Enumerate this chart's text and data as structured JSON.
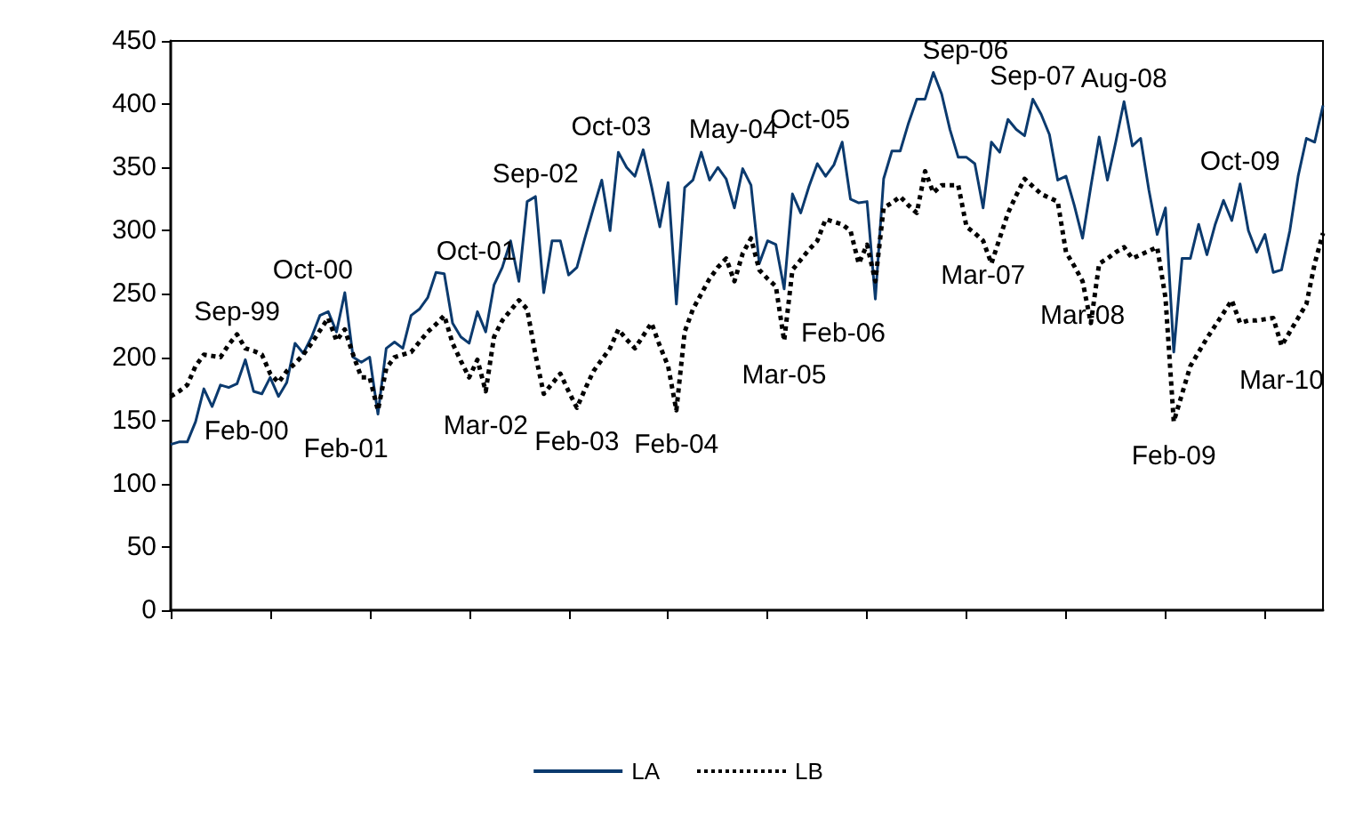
{
  "chart_data": {
    "type": "line",
    "categories": [
      null,
      null,
      null,
      null,
      null,
      null,
      null,
      null,
      null,
      null,
      null,
      null,
      null,
      null,
      null,
      null,
      null,
      null,
      null,
      null,
      null,
      null,
      null,
      null,
      null,
      null,
      null,
      null,
      null,
      null,
      null,
      null,
      null,
      null,
      null,
      null,
      null,
      null,
      null,
      null,
      null,
      null,
      null,
      null,
      null,
      null,
      null,
      null,
      null,
      null,
      null,
      null,
      null,
      null,
      null,
      null,
      null,
      null,
      null,
      null,
      null,
      null,
      null,
      null,
      null,
      null,
      null,
      null,
      null,
      null,
      null,
      null,
      null,
      null,
      null,
      null,
      null,
      null,
      null,
      null,
      null,
      null,
      null,
      null,
      null,
      null,
      null,
      null,
      null,
      null,
      null,
      null,
      null,
      null,
      null,
      null,
      null,
      null,
      null,
      null,
      null,
      null,
      null,
      null,
      null,
      null,
      null,
      null,
      null,
      null,
      null,
      null,
      null,
      null,
      null,
      null,
      null,
      null,
      null,
      null,
      null,
      null,
      null,
      null,
      null,
      null,
      null,
      null,
      null,
      null,
      null,
      null,
      null,
      null,
      null,
      null,
      null,
      null,
      null,
      null
    ],
    "series": [
      {
        "name": "LA",
        "color": "#0b3a6e",
        "line_style": "solid",
        "values": [
          131,
          133,
          133,
          149,
          175,
          161,
          178,
          176,
          179,
          198,
          173,
          171,
          184,
          169,
          180,
          211,
          203,
          216,
          233,
          236,
          220,
          251,
          200,
          196,
          200,
          155,
          207,
          212,
          207,
          233,
          238,
          247,
          267,
          266,
          227,
          216,
          211,
          236,
          220,
          257,
          271,
          292,
          260,
          323,
          327,
          251,
          292,
          292,
          265,
          271,
          295,
          318,
          340,
          300,
          362,
          350,
          343,
          364,
          335,
          303,
          338,
          242,
          334,
          340,
          362,
          340,
          350,
          341,
          318,
          349,
          336,
          274,
          292,
          289,
          254,
          329,
          314,
          335,
          353,
          343,
          352,
          370,
          325,
          322,
          323,
          246,
          341,
          363,
          363,
          385,
          404,
          404,
          425,
          408,
          380,
          358,
          358,
          353,
          318,
          370,
          362,
          388,
          380,
          375,
          404,
          392,
          376,
          340,
          343,
          320,
          294,
          335,
          374,
          340,
          370,
          402,
          367,
          373,
          332,
          297,
          318,
          204,
          278,
          278,
          305,
          281,
          305,
          324,
          308,
          337,
          300,
          283,
          297,
          267,
          269,
          300,
          343,
          373,
          370,
          399
        ],
        "value_labels": [
          null,
          null,
          null,
          null,
          null,
          null,
          null,
          null,
          null,
          null,
          null,
          null,
          null,
          "Feb-00",
          null,
          null,
          null,
          null,
          null,
          null,
          null,
          "Oct-00",
          null,
          null,
          null,
          "Feb-01",
          null,
          null,
          null,
          null,
          null,
          null,
          null,
          "Oct-01",
          null,
          null,
          null,
          null,
          null,
          null,
          null,
          null,
          null,
          null,
          "Sep-02",
          null,
          null,
          null,
          null,
          null,
          null,
          null,
          null,
          null,
          null,
          null,
          null,
          "Oct-03",
          null,
          null,
          null,
          null,
          null,
          null,
          "May-04",
          null,
          null,
          null,
          null,
          null,
          null,
          null,
          null,
          null,
          null,
          null,
          null,
          null,
          null,
          null,
          null,
          "Oct-05",
          null,
          null,
          null,
          "Feb-06",
          null,
          null,
          null,
          null,
          null,
          null,
          "Sep-06",
          null,
          null,
          null,
          null,
          null,
          null,
          null,
          null,
          null,
          null,
          null,
          "Sep-07",
          null,
          null,
          null,
          null,
          null,
          null,
          null,
          null,
          null,
          null,
          "Aug-08",
          null,
          null,
          null,
          null,
          null,
          null,
          null,
          null,
          null,
          null,
          null,
          null,
          null,
          "Oct-09",
          null,
          null,
          null,
          null,
          null,
          null,
          null,
          null,
          null,
          null
        ]
      },
      {
        "name": "LB",
        "color": "#000000",
        "line_style": "dotted",
        "values": [
          169,
          173,
          178,
          193,
          202,
          201,
          200,
          210,
          218,
          207,
          205,
          202,
          187,
          180,
          189,
          195,
          202,
          211,
          221,
          231,
          213,
          222,
          202,
          184,
          184,
          158,
          191,
          200,
          202,
          204,
          212,
          220,
          226,
          233,
          211,
          197,
          184,
          198,
          173,
          216,
          229,
          237,
          245,
          238,
          202,
          171,
          179,
          187,
          173,
          160,
          175,
          189,
          198,
          207,
          222,
          214,
          207,
          217,
          227,
          209,
          193,
          158,
          220,
          238,
          250,
          262,
          271,
          278,
          260,
          282,
          294,
          269,
          262,
          256,
          213,
          269,
          277,
          285,
          292,
          309,
          307,
          305,
          300,
          274,
          289,
          260,
          318,
          322,
          327,
          320,
          314,
          347,
          330,
          336,
          336,
          336,
          303,
          298,
          292,
          274,
          294,
          314,
          328,
          341,
          335,
          329,
          326,
          323,
          283,
          272,
          260,
          227,
          274,
          278,
          283,
          287,
          278,
          281,
          284,
          287,
          247,
          149,
          171,
          193,
          204,
          215,
          225,
          235,
          245,
          227,
          229,
          229,
          230,
          231,
          209,
          220,
          231,
          242,
          274,
          298
        ],
        "value_labels": [
          null,
          null,
          null,
          null,
          null,
          null,
          null,
          null,
          "Sep-99",
          null,
          null,
          null,
          null,
          null,
          null,
          null,
          null,
          null,
          null,
          null,
          null,
          null,
          null,
          null,
          null,
          null,
          null,
          null,
          null,
          null,
          null,
          null,
          null,
          null,
          null,
          null,
          null,
          null,
          "Mar-02",
          null,
          null,
          null,
          null,
          null,
          null,
          null,
          null,
          null,
          null,
          "Feb-03",
          null,
          null,
          null,
          null,
          null,
          null,
          null,
          null,
          null,
          null,
          null,
          "Feb-04",
          null,
          null,
          null,
          null,
          null,
          null,
          null,
          null,
          null,
          null,
          null,
          null,
          "Mar-05",
          null,
          null,
          null,
          null,
          null,
          null,
          null,
          null,
          null,
          null,
          null,
          null,
          null,
          null,
          null,
          null,
          null,
          null,
          null,
          null,
          null,
          null,
          null,
          "Mar-07",
          null,
          null,
          null,
          null,
          null,
          null,
          null,
          null,
          null,
          null,
          null,
          "Mar-08",
          null,
          null,
          null,
          null,
          null,
          null,
          null,
          null,
          null,
          null,
          "Feb-09",
          null,
          null,
          null,
          null,
          null,
          null,
          null,
          null,
          null,
          null,
          null,
          null,
          "Mar-10",
          null,
          null,
          null,
          null,
          null
        ]
      }
    ],
    "ylim": [
      0,
      450
    ],
    "yticks": [
      0,
      50,
      100,
      150,
      200,
      250,
      300,
      350,
      400,
      450
    ],
    "tick_labels": "y",
    "grid": false,
    "legend": "bottom",
    "marker": "none"
  }
}
